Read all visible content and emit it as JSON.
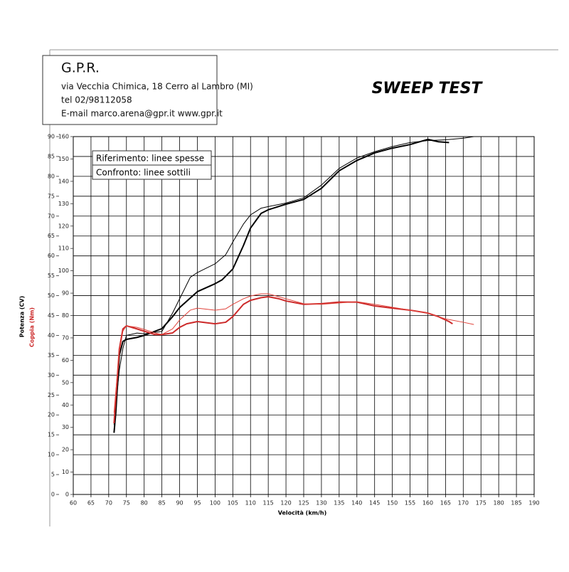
{
  "header": {
    "company": "G.P.R.",
    "address": "via Vecchia Chimica, 18 Cerro al Lambro (MI)",
    "phone": "tel 02/98112058",
    "contact": "E-mail marco.arena@gpr.it  www.gpr.it"
  },
  "chart_data": {
    "type": "line",
    "title": "SWEEP TEST",
    "xlabel": "Velocità (km/h)",
    "ylabel": "Potenza (CV)",
    "y2label": "Coppia (Nm)",
    "y2label_color": "#cc2a2a",
    "annotations": [
      "Riferimento: linee spesse",
      "Confronto: linee sottili"
    ],
    "xlim": [
      60,
      190
    ],
    "xticks": [
      60,
      65,
      70,
      75,
      80,
      85,
      90,
      95,
      100,
      105,
      110,
      115,
      120,
      125,
      130,
      135,
      140,
      145,
      150,
      155,
      160,
      165,
      170,
      175,
      180,
      185,
      190
    ],
    "ylim": [
      0,
      90
    ],
    "yticks": [
      0,
      5,
      10,
      15,
      20,
      25,
      30,
      35,
      40,
      45,
      50,
      55,
      60,
      65,
      70,
      75,
      80,
      85,
      90
    ],
    "y2lim": [
      0,
      160
    ],
    "y2ticks": [
      0,
      10,
      20,
      30,
      40,
      50,
      60,
      70,
      80,
      90,
      100,
      110,
      120,
      130,
      140,
      150,
      160
    ],
    "grid": true,
    "series": [
      {
        "color": "#000000",
        "line_width": 2,
        "x": [
          71.5,
          72,
          73,
          74,
          75,
          78,
          80,
          85,
          88,
          90,
          95,
          100,
          102,
          105,
          108,
          110,
          113,
          115,
          120,
          125,
          130,
          135,
          140,
          145,
          150,
          155,
          160,
          163,
          166
        ],
        "values": [
          15.5,
          20.6,
          35,
          38.5,
          39,
          39.5,
          40,
          41.7,
          44.7,
          47,
          51,
          53,
          54,
          56.7,
          62.6,
          67,
          70.7,
          71.6,
          73,
          74.2,
          77,
          81.4,
          84,
          85.9,
          87.1,
          88,
          89.3,
          88.7,
          88.5
        ]
      },
      {
        "color": "#000000",
        "line_width": 1,
        "x": [
          71.5,
          72,
          73,
          74,
          75,
          78,
          80,
          85,
          88,
          90,
          93,
          95,
          100,
          103,
          105,
          108,
          110,
          113,
          115,
          120,
          125,
          130,
          135,
          140,
          145,
          150,
          155,
          160,
          165,
          170,
          173
        ],
        "values": [
          17.5,
          22.4,
          31.3,
          36.7,
          40,
          40.6,
          40.4,
          41,
          45.6,
          49.2,
          54.6,
          55.8,
          58,
          60.3,
          63.5,
          68,
          70.3,
          72,
          72.4,
          73.3,
          74.6,
          77.8,
          82,
          84.6,
          86.2,
          87.5,
          88.5,
          89,
          89.2,
          89.6,
          90
        ]
      },
      {
        "color": "#cc2a2a",
        "line_width": 2,
        "axis": "y2",
        "x": [
          71.5,
          72,
          73,
          74,
          75,
          78,
          80,
          83,
          85,
          88,
          90,
          92,
          95,
          100,
          103,
          105,
          108,
          110,
          113,
          115,
          118,
          120,
          125,
          130,
          135,
          140,
          145,
          150,
          155,
          160,
          163,
          166,
          167
        ],
        "values": [
          31.8,
          43,
          65,
          74,
          75.4,
          74,
          73,
          71.5,
          71.5,
          72.2,
          74.7,
          76.3,
          77.3,
          76.3,
          77,
          79.5,
          85,
          86.8,
          88,
          88.4,
          87.5,
          86.5,
          85,
          85.3,
          86,
          86,
          84.3,
          83.3,
          82.4,
          81.1,
          79.5,
          77.3,
          76.3
        ]
      },
      {
        "color": "#e0443c",
        "line_width": 1,
        "axis": "y2",
        "x": [
          71.5,
          72,
          73,
          74,
          75,
          78,
          80,
          83,
          85,
          88,
          90,
          93,
          95,
          100,
          103,
          105,
          108,
          110,
          113,
          115,
          118,
          120,
          125,
          130,
          135,
          140,
          145,
          150,
          155,
          160,
          165,
          170,
          173
        ],
        "values": [
          36.6,
          46,
          63.6,
          73,
          75.4,
          74.7,
          73.8,
          72.2,
          71.5,
          74,
          78,
          82.4,
          83.3,
          82.4,
          83,
          85,
          87.5,
          88.7,
          89.7,
          89.7,
          88.4,
          87.5,
          85.3,
          85,
          85.6,
          86.2,
          85,
          83.7,
          82.4,
          81.1,
          78.5,
          77,
          76
        ]
      }
    ]
  }
}
